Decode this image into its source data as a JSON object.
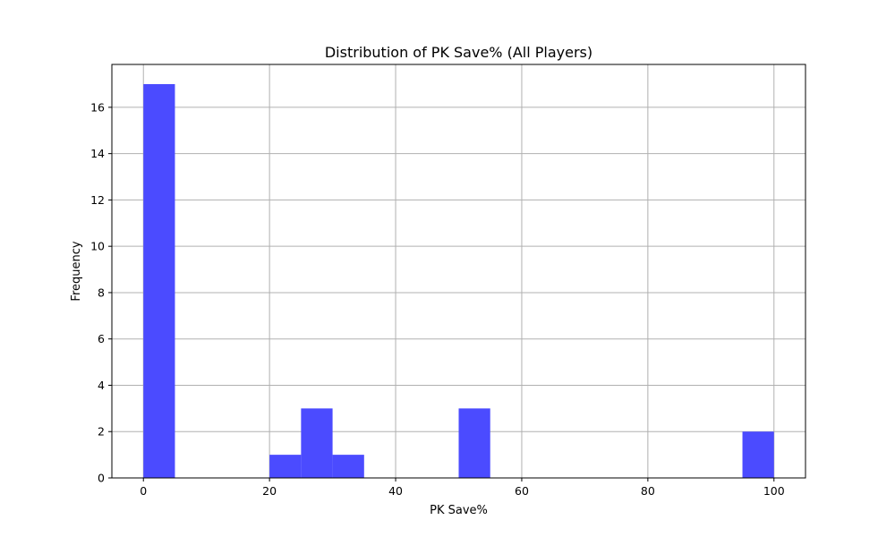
{
  "chart_data": {
    "type": "bar",
    "subtype": "histogram",
    "title": "Distribution of PK Save% (All Players)",
    "xlabel": "PK Save%",
    "ylabel": "Frequency",
    "xlim": [
      -5,
      105
    ],
    "ylim": [
      0,
      17.85
    ],
    "x_ticks": [
      0,
      20,
      40,
      60,
      80,
      100
    ],
    "y_ticks": [
      0,
      2,
      4,
      6,
      8,
      10,
      12,
      14,
      16
    ],
    "grid": true,
    "bar_color": "#4b4bff",
    "bins": [
      {
        "start": 0,
        "end": 5,
        "count": 17
      },
      {
        "start": 5,
        "end": 10,
        "count": 0
      },
      {
        "start": 10,
        "end": 15,
        "count": 0
      },
      {
        "start": 15,
        "end": 20,
        "count": 0
      },
      {
        "start": 20,
        "end": 25,
        "count": 1
      },
      {
        "start": 25,
        "end": 30,
        "count": 3
      },
      {
        "start": 30,
        "end": 35,
        "count": 1
      },
      {
        "start": 35,
        "end": 40,
        "count": 0
      },
      {
        "start": 40,
        "end": 45,
        "count": 0
      },
      {
        "start": 45,
        "end": 50,
        "count": 0
      },
      {
        "start": 50,
        "end": 55,
        "count": 3
      },
      {
        "start": 55,
        "end": 60,
        "count": 0
      },
      {
        "start": 60,
        "end": 65,
        "count": 0
      },
      {
        "start": 65,
        "end": 70,
        "count": 0
      },
      {
        "start": 70,
        "end": 75,
        "count": 0
      },
      {
        "start": 75,
        "end": 80,
        "count": 0
      },
      {
        "start": 80,
        "end": 85,
        "count": 0
      },
      {
        "start": 85,
        "end": 90,
        "count": 0
      },
      {
        "start": 90,
        "end": 95,
        "count": 0
      },
      {
        "start": 95,
        "end": 100,
        "count": 2
      }
    ]
  }
}
